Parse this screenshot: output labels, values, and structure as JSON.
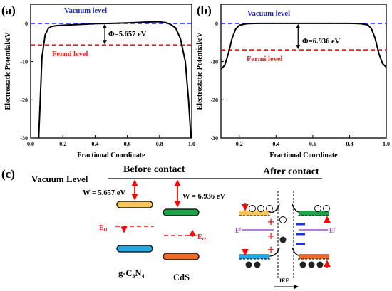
{
  "colors": {
    "curve": "#000000",
    "vacuum": "#1a1aff",
    "fermi": "#ff1a1a",
    "arrow_red": "#ff0000",
    "band_yellow": "#f7c65a",
    "band_green": "#1fa34a",
    "band_blue": "#29a8e0",
    "band_orange": "#ee6a2a",
    "ief_purple": "#a050d0",
    "minus_blue": "#2233dd"
  },
  "chart_data": [
    {
      "type": "line",
      "panel_label": "(a)",
      "ylabel": "Electrostatic Potential/eV",
      "xlabel": "Fractional Coordinate",
      "xlim": [
        0.0,
        1.0
      ],
      "ylim": [
        -30,
        5
      ],
      "xticks": [
        "0.0",
        "0.2",
        "0.4",
        "0.6",
        "0.8",
        "1.0"
      ],
      "yticks": [
        "0",
        "-10",
        "-20",
        "-30"
      ],
      "vacuum_label": "Vacuum level",
      "fermi_label": "Fermi level",
      "vacuum_level": 0.0,
      "fermi_level": -5.657,
      "annotation": "Φ=5.657 eV",
      "annotation_x": 0.46,
      "x": [
        0.05,
        0.07,
        0.09,
        0.11,
        0.13,
        0.16,
        0.2,
        0.3,
        0.4,
        0.5,
        0.6,
        0.7,
        0.76,
        0.8,
        0.84,
        0.87,
        0.9,
        0.93,
        0.96,
        0.98,
        0.995
      ],
      "y": [
        -30,
        -9,
        -3,
        -1.3,
        -0.8,
        -0.6,
        -0.5,
        -0.3,
        -0.1,
        0,
        0.1,
        0.3,
        0.4,
        0.4,
        0.2,
        -0.3,
        -1.2,
        -4,
        -10,
        -20,
        -30
      ]
    },
    {
      "type": "line",
      "panel_label": "(b)",
      "ylabel": "Electrostatic Potential/eV",
      "xlabel": "Fractional Coordinate",
      "xlim": [
        0.1,
        1.0
      ],
      "ylim": [
        -30,
        5
      ],
      "xticks": [
        "0.2",
        "0.4",
        "0.6",
        "0.8",
        "1.0"
      ],
      "yticks": [
        "0",
        "-10",
        "-20",
        "-30"
      ],
      "vacuum_label": "Vacuum level",
      "fermi_label": "Fermi level",
      "vacuum_level": 0.0,
      "fermi_level": -6.936,
      "annotation": "Φ=6.936 eV",
      "annotation_x": 0.52,
      "x": [
        0.1,
        0.12,
        0.14,
        0.16,
        0.18,
        0.2,
        0.24,
        0.3,
        0.4,
        0.5,
        0.6,
        0.7,
        0.8,
        0.86,
        0.9,
        0.92,
        0.94,
        0.96,
        0.98,
        1.0
      ],
      "y": [
        -12,
        -11,
        -8,
        -4,
        -1.5,
        -0.5,
        -0.1,
        0,
        0,
        0,
        0,
        0,
        0,
        -0.1,
        -0.4,
        -1.5,
        -4,
        -8,
        -10.5,
        -11.5
      ]
    }
  ],
  "panel_c": {
    "label": "(c)",
    "vacuum_label": "Vacuum Level",
    "before_title": "Before contact",
    "after_title": "After contact",
    "w1": "W = 5.657 eV",
    "w2": "W = 6.936 eV",
    "ef1": "E",
    "ef1_sub": "f1",
    "ef2": "E",
    "ef2_sub": "f2",
    "mat1": "g-C",
    "mat1_sub1": "3",
    "mat1_mid": "N",
    "mat1_sub2": "4",
    "mat2": "CdS",
    "ef_left": "E",
    "ef_left_sub": "f",
    "ef_right": "E",
    "ef_right_sub": "f",
    "ief": "IEF",
    "minus_sign": "−",
    "plus_sign": "+",
    "electron_sign": "−",
    "hole_sign": "+"
  }
}
